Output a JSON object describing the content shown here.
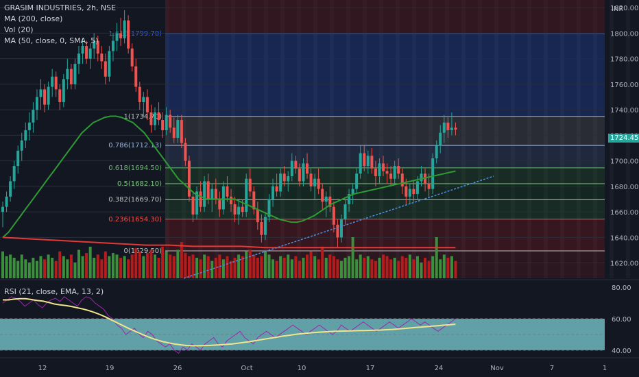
{
  "header": {
    "symbol_line": "GRASIM INDUSTRIES, 2h, NSE",
    "indicators": [
      "MA (200, close)",
      "Vol (20)",
      "MA (50, close, 0, SMA, 5)"
    ]
  },
  "rsi_legend": "RSI (21, close, EMA, 13, 2)",
  "currency": "INR",
  "last_price": "1724.45",
  "colors": {
    "background": "#131722",
    "up": "#26a69a",
    "up_volume": "#3c8f3c",
    "down": "#ef5350",
    "down_volume": "#b71c1c",
    "ma50": "#2e9b34",
    "ma200": "#e53935",
    "trendline": "#4a90e2",
    "rsi_line": "#9c27b0",
    "rsi_ema": "#f0e68c",
    "rsi_band": "#7ecfd6"
  },
  "chart_data": [
    {
      "type": "candlestick",
      "title": "GRASIM INDUSTRIES, 2h, NSE",
      "y_unit": "INR",
      "ylim": [
        1608,
        1826
      ],
      "y_ticks": [
        "1820.00",
        "1800.00",
        "1780.00",
        "1760.00",
        "1740.00",
        "1720.00",
        "1700.00",
        "1680.00",
        "1660.00",
        "1640.00",
        "1620.00"
      ],
      "x_tick_labels": [
        "12",
        "19",
        "26",
        "Oct",
        "10",
        "17",
        "24",
        "Nov",
        "7",
        "1"
      ],
      "last_price": 1724.45,
      "fibonacci": [
        {
          "ratio": "1.618",
          "price": 1799.7,
          "label": "1.618(1799.70)"
        },
        {
          "ratio": "1",
          "price": 1734.7,
          "label": "1(1734.70)"
        },
        {
          "ratio": "0.786",
          "price": 1712.13,
          "label": "0.786(1712.13)"
        },
        {
          "ratio": "0.618",
          "price": 1694.5,
          "label": "0.618(1694.50)"
        },
        {
          "ratio": "0.5",
          "price": 1682.1,
          "label": "0.5(1682.10)"
        },
        {
          "ratio": "0.382",
          "price": 1669.7,
          "label": "0.382(1669.70)"
        },
        {
          "ratio": "0.236",
          "price": 1654.3,
          "label": "0.236(1654.30)"
        },
        {
          "ratio": "0",
          "price": 1629.5,
          "label": "0(1629.50)"
        }
      ],
      "ohlc": [
        [
          1660,
          1668,
          1648,
          1664
        ],
        [
          1664,
          1676,
          1660,
          1672
        ],
        [
          1672,
          1688,
          1668,
          1684
        ],
        [
          1684,
          1700,
          1678,
          1696
        ],
        [
          1696,
          1712,
          1690,
          1708
        ],
        [
          1708,
          1722,
          1700,
          1716
        ],
        [
          1716,
          1730,
          1710,
          1724
        ],
        [
          1724,
          1738,
          1716,
          1730
        ],
        [
          1730,
          1746,
          1722,
          1740
        ],
        [
          1740,
          1756,
          1732,
          1750
        ],
        [
          1750,
          1764,
          1740,
          1756
        ],
        [
          1756,
          1760,
          1738,
          1744
        ],
        [
          1744,
          1762,
          1740,
          1758
        ],
        [
          1758,
          1772,
          1750,
          1766
        ],
        [
          1766,
          1770,
          1750,
          1756
        ],
        [
          1756,
          1760,
          1740,
          1746
        ],
        [
          1746,
          1768,
          1742,
          1764
        ],
        [
          1764,
          1780,
          1756,
          1772
        ],
        [
          1772,
          1776,
          1756,
          1760
        ],
        [
          1760,
          1780,
          1756,
          1776
        ],
        [
          1776,
          1790,
          1768,
          1784
        ],
        [
          1784,
          1796,
          1776,
          1790
        ],
        [
          1790,
          1794,
          1776,
          1780
        ],
        [
          1780,
          1792,
          1772,
          1788
        ],
        [
          1788,
          1800,
          1780,
          1794
        ],
        [
          1794,
          1798,
          1778,
          1784
        ],
        [
          1784,
          1790,
          1772,
          1778
        ],
        [
          1778,
          1784,
          1760,
          1766
        ],
        [
          1766,
          1790,
          1762,
          1786
        ],
        [
          1786,
          1800,
          1778,
          1794
        ],
        [
          1794,
          1808,
          1786,
          1800
        ],
        [
          1800,
          1812,
          1790,
          1796
        ],
        [
          1796,
          1818,
          1792,
          1810
        ],
        [
          1810,
          1814,
          1784,
          1788
        ],
        [
          1788,
          1792,
          1770,
          1774
        ],
        [
          1774,
          1780,
          1754,
          1758
        ],
        [
          1758,
          1762,
          1740,
          1746
        ],
        [
          1746,
          1754,
          1734,
          1750
        ],
        [
          1750,
          1756,
          1732,
          1738
        ],
        [
          1738,
          1744,
          1722,
          1728
        ],
        [
          1728,
          1742,
          1724,
          1738
        ],
        [
          1738,
          1746,
          1728,
          1732
        ],
        [
          1732,
          1738,
          1718,
          1724
        ],
        [
          1724,
          1742,
          1720,
          1736
        ],
        [
          1736,
          1740,
          1722,
          1726
        ],
        [
          1726,
          1734,
          1714,
          1718
        ],
        [
          1718,
          1736,
          1714,
          1732
        ],
        [
          1732,
          1736,
          1710,
          1714
        ],
        [
          1714,
          1718,
          1696,
          1700
        ],
        [
          1700,
          1704,
          1668,
          1672
        ],
        [
          1672,
          1676,
          1652,
          1658
        ],
        [
          1658,
          1680,
          1654,
          1676
        ],
        [
          1676,
          1684,
          1660,
          1664
        ],
        [
          1664,
          1688,
          1660,
          1684
        ],
        [
          1684,
          1690,
          1666,
          1670
        ],
        [
          1670,
          1682,
          1660,
          1678
        ],
        [
          1678,
          1686,
          1666,
          1670
        ],
        [
          1670,
          1676,
          1656,
          1662
        ],
        [
          1662,
          1684,
          1658,
          1680
        ],
        [
          1680,
          1688,
          1668,
          1672
        ],
        [
          1672,
          1678,
          1660,
          1666
        ],
        [
          1666,
          1672,
          1652,
          1658
        ],
        [
          1658,
          1668,
          1650,
          1664
        ],
        [
          1664,
          1670,
          1656,
          1660
        ],
        [
          1660,
          1690,
          1656,
          1686
        ],
        [
          1686,
          1694,
          1672,
          1676
        ],
        [
          1676,
          1680,
          1658,
          1662
        ],
        [
          1662,
          1668,
          1646,
          1652
        ],
        [
          1652,
          1658,
          1636,
          1642
        ],
        [
          1642,
          1660,
          1638,
          1656
        ],
        [
          1656,
          1674,
          1652,
          1670
        ],
        [
          1670,
          1686,
          1664,
          1680
        ],
        [
          1680,
          1690,
          1672,
          1676
        ],
        [
          1676,
          1694,
          1672,
          1690
        ],
        [
          1690,
          1696,
          1680,
          1684
        ],
        [
          1684,
          1692,
          1676,
          1688
        ],
        [
          1688,
          1706,
          1684,
          1700
        ],
        [
          1700,
          1704,
          1690,
          1694
        ],
        [
          1694,
          1698,
          1680,
          1684
        ],
        [
          1684,
          1702,
          1680,
          1698
        ],
        [
          1698,
          1706,
          1686,
          1690
        ],
        [
          1690,
          1694,
          1676,
          1680
        ],
        [
          1680,
          1690,
          1670,
          1686
        ],
        [
          1686,
          1694,
          1674,
          1678
        ],
        [
          1678,
          1682,
          1662,
          1668
        ],
        [
          1668,
          1676,
          1656,
          1672
        ],
        [
          1672,
          1680,
          1660,
          1664
        ],
        [
          1664,
          1668,
          1644,
          1650
        ],
        [
          1650,
          1654,
          1632,
          1640
        ],
        [
          1640,
          1658,
          1636,
          1654
        ],
        [
          1654,
          1670,
          1650,
          1666
        ],
        [
          1666,
          1678,
          1660,
          1674
        ],
        [
          1674,
          1682,
          1666,
          1678
        ],
        [
          1678,
          1694,
          1674,
          1690
        ],
        [
          1690,
          1712,
          1686,
          1706
        ],
        [
          1706,
          1712,
          1692,
          1696
        ],
        [
          1696,
          1708,
          1690,
          1704
        ],
        [
          1704,
          1710,
          1690,
          1694
        ],
        [
          1694,
          1700,
          1680,
          1688
        ],
        [
          1688,
          1702,
          1682,
          1698
        ],
        [
          1698,
          1704,
          1688,
          1692
        ],
        [
          1692,
          1698,
          1682,
          1690
        ],
        [
          1690,
          1696,
          1680,
          1686
        ],
        [
          1686,
          1700,
          1682,
          1696
        ],
        [
          1696,
          1702,
          1686,
          1690
        ],
        [
          1690,
          1694,
          1674,
          1680
        ],
        [
          1680,
          1686,
          1666,
          1672
        ],
        [
          1672,
          1682,
          1666,
          1678
        ],
        [
          1678,
          1684,
          1668,
          1674
        ],
        [
          1674,
          1688,
          1670,
          1684
        ],
        [
          1684,
          1696,
          1680,
          1690
        ],
        [
          1690,
          1694,
          1676,
          1682
        ],
        [
          1682,
          1690,
          1672,
          1678
        ],
        [
          1678,
          1706,
          1674,
          1702
        ],
        [
          1702,
          1716,
          1698,
          1712
        ],
        [
          1712,
          1728,
          1706,
          1722
        ],
        [
          1722,
          1736,
          1714,
          1730
        ],
        [
          1730,
          1734,
          1718,
          1724
        ],
        [
          1724,
          1738,
          1720,
          1726
        ],
        [
          1726,
          1730,
          1720,
          1724.45
        ]
      ],
      "volume": [
        34,
        28,
        30,
        26,
        22,
        30,
        24,
        20,
        26,
        22,
        28,
        24,
        30,
        26,
        22,
        34,
        28,
        24,
        30,
        20,
        36,
        28,
        32,
        40,
        26,
        30,
        24,
        34,
        28,
        32,
        30,
        26,
        28,
        24,
        30,
        38,
        34,
        28,
        32,
        36,
        30,
        26,
        40,
        34,
        30,
        28,
        36,
        46,
        32,
        28,
        30,
        26,
        24,
        30,
        28,
        22,
        26,
        30,
        24,
        28,
        22,
        26,
        30,
        28,
        34,
        36,
        30,
        26,
        28,
        34,
        30,
        24,
        22,
        28,
        26,
        30,
        24,
        28,
        22,
        26,
        30,
        34,
        28,
        24,
        40,
        26,
        30,
        28,
        24,
        22,
        26,
        28,
        52,
        24,
        30,
        26,
        28,
        24,
        22,
        26,
        30,
        28,
        24,
        26,
        22,
        28,
        26,
        30,
        24,
        28,
        20,
        26,
        22,
        28,
        52,
        24,
        30,
        26,
        28,
        22,
        30,
        24,
        26,
        28,
        32,
        24,
        22,
        26,
        28,
        30,
        26,
        24
      ],
      "ma50": [
        1640,
        1644,
        1650,
        1656,
        1662,
        1668,
        1674,
        1680,
        1686,
        1692,
        1698,
        1704,
        1710,
        1716,
        1722,
        1726,
        1730,
        1732,
        1734,
        1735,
        1735,
        1734,
        1732,
        1730,
        1726,
        1722,
        1716,
        1710,
        1704,
        1698,
        1692,
        1686,
        1682,
        1678,
        1674,
        1672,
        1670,
        1670,
        1670,
        1670,
        1670,
        1670,
        1668,
        1666,
        1664,
        1662,
        1660,
        1658,
        1656,
        1654,
        1653,
        1652,
        1652,
        1653,
        1655,
        1657,
        1660,
        1663,
        1666,
        1668,
        1670,
        1672,
        1674,
        1675,
        1676,
        1677,
        1678,
        1679,
        1680,
        1681,
        1682,
        1683,
        1684,
        1685,
        1686,
        1687,
        1688,
        1689,
        1690,
        1691,
        1692
      ],
      "ma200": [
        1640,
        1639,
        1638,
        1637,
        1636,
        1635,
        1634,
        1634,
        1633,
        1633,
        1633,
        1632,
        1632,
        1632,
        1632,
        1632,
        1632,
        1632,
        1632,
        1632
      ],
      "trendline": {
        "from": [
          1608,
          "26"
        ],
        "to": [
          1688,
          "24"
        ]
      },
      "rsi": {
        "label": "RSI (21, close, EMA, 13, 2)",
        "ylim": [
          36,
          84
        ],
        "y_ticks": [
          "80.00",
          "60.00",
          "40.00"
        ],
        "band": [
          40,
          60
        ],
        "values": [
          70,
          72,
          74,
          73,
          71,
          68,
          70,
          72,
          69,
          67,
          70,
          72,
          73,
          71,
          74,
          72,
          70,
          68,
          72,
          74,
          73,
          70,
          68,
          66,
          62,
          60,
          56,
          54,
          50,
          52,
          54,
          50,
          48,
          52,
          50,
          46,
          44,
          42,
          44,
          40,
          38,
          42,
          40,
          44,
          42,
          40,
          44,
          46,
          48,
          44,
          42,
          46,
          48,
          50,
          52,
          48,
          46,
          44,
          48,
          50,
          52,
          50,
          48,
          50,
          52,
          54,
          56,
          54,
          52,
          50,
          52,
          54,
          56,
          54,
          52,
          50,
          52,
          56,
          54,
          52,
          54,
          56,
          58,
          56,
          54,
          52,
          54,
          56,
          58,
          56,
          54,
          56,
          58,
          60,
          58,
          56,
          58,
          56,
          54,
          52,
          54,
          56,
          58,
          60
        ],
        "ema": [
          72,
          72,
          72.5,
          72.8,
          72.8,
          72.2,
          71.6,
          71.2,
          70.4,
          69.4,
          68.8,
          68.4,
          67.8,
          67,
          66.2,
          65.2,
          64,
          62.6,
          61,
          59.2,
          57.4,
          55.6,
          53.8,
          52.2,
          50.6,
          49,
          47.6,
          46.4,
          45.4,
          44.6,
          43.9,
          43.4,
          43,
          42.8,
          42.8,
          42.9,
          43,
          43.2,
          43.4,
          43.7,
          44,
          44.4,
          44.9,
          45.4,
          46,
          46.6,
          47.2,
          47.8,
          48.4,
          49,
          49.5,
          50,
          50.4,
          50.8,
          51.1,
          51.4,
          51.6,
          51.8,
          52,
          52.1,
          52.2,
          52.3,
          52.4,
          52.5,
          52.6,
          52.7,
          52.8,
          53,
          53.2,
          53.5,
          53.8,
          54.1,
          54.4,
          54.7,
          55,
          55.3,
          55.6,
          55.9,
          56.2,
          56.5
        ]
      }
    }
  ]
}
